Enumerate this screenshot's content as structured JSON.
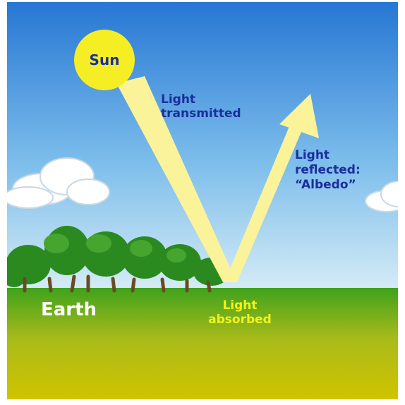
{
  "sun": {
    "label": "Sun"
  },
  "transmitted": {
    "lines": [
      "Light",
      "transmitted"
    ]
  },
  "reflected": {
    "lines": [
      "Light",
      "reflected:",
      "“Albedo”"
    ]
  },
  "earth": {
    "label": "Earth"
  },
  "absorbed": {
    "lines": [
      "Light",
      "absorbed"
    ]
  }
}
